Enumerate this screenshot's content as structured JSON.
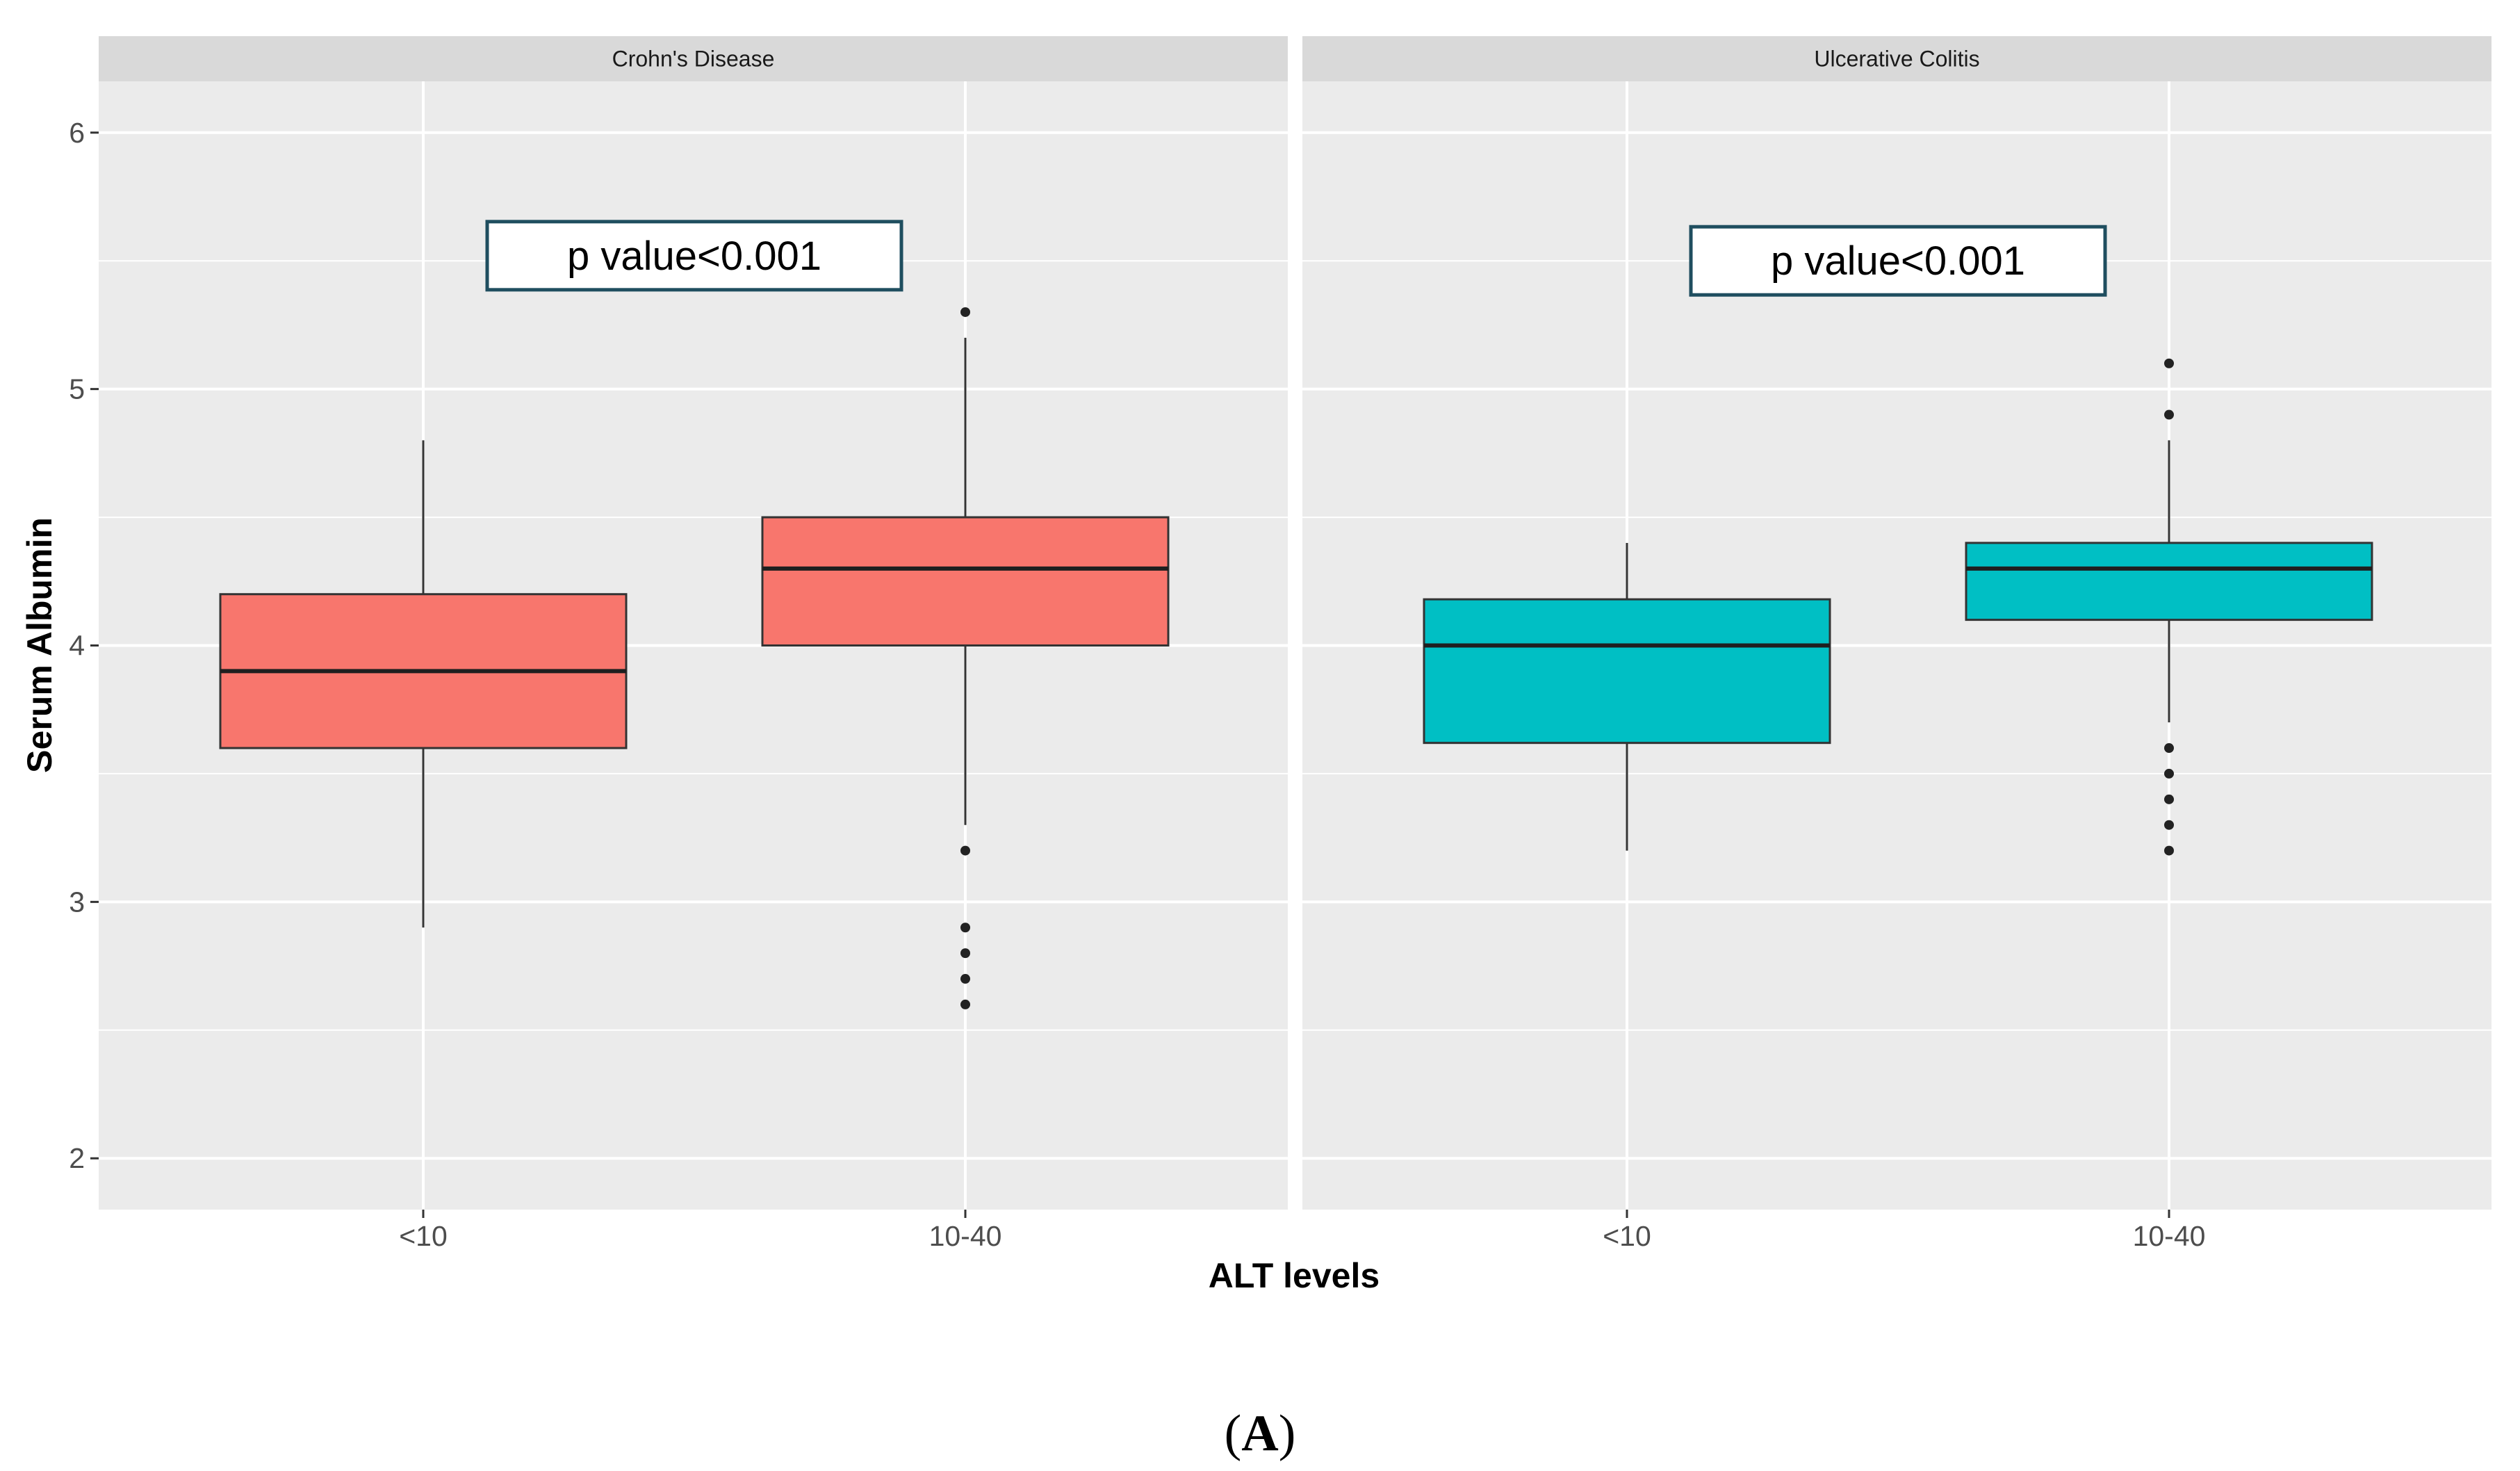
{
  "chart_data": {
    "type": "boxplot",
    "xlabel": "ALT levels",
    "ylabel": "Serum Albumin",
    "ylim": [
      1.8,
      6.2
    ],
    "yticks": [
      2,
      3,
      4,
      5,
      6
    ],
    "categories": [
      "<10",
      "10-40"
    ],
    "grid": true,
    "caption_prefix": "(",
    "caption_letter": "A",
    "caption_suffix": ")",
    "panels": [
      {
        "name": "Crohn's Disease",
        "fill": "#F8766D",
        "annotation": "p value<0.001",
        "annotation_anchor": {
          "category_pos": 1.5,
          "y": 5.52
        },
        "boxes": [
          {
            "category": "<10",
            "whisker_low": 2.9,
            "q1": 3.6,
            "median": 3.9,
            "q3": 4.2,
            "whisker_high": 4.8,
            "outliers": []
          },
          {
            "category": "10-40",
            "whisker_low": 3.3,
            "q1": 4.0,
            "median": 4.3,
            "q3": 4.5,
            "whisker_high": 5.2,
            "outliers": [
              5.3,
              3.2,
              2.9,
              2.8,
              2.7,
              2.6
            ]
          }
        ]
      },
      {
        "name": "Ulcerative Colitis",
        "fill": "#00BFC4",
        "annotation": "p value<0.001",
        "annotation_anchor": {
          "category_pos": 1.5,
          "y": 5.5
        },
        "boxes": [
          {
            "category": "<10",
            "whisker_low": 3.2,
            "q1": 3.62,
            "median": 4.0,
            "q3": 4.18,
            "whisker_high": 4.4,
            "outliers": []
          },
          {
            "category": "10-40",
            "whisker_low": 3.7,
            "q1": 4.1,
            "median": 4.3,
            "q3": 4.4,
            "whisker_high": 4.8,
            "outliers": [
              5.1,
              4.9,
              3.6,
              3.5,
              3.4,
              3.3,
              3.2
            ]
          }
        ]
      }
    ]
  }
}
